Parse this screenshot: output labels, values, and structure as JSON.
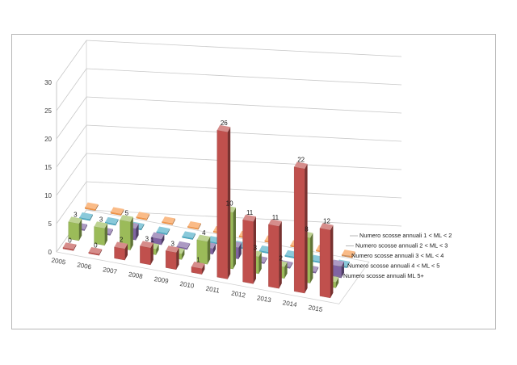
{
  "chart_data": {
    "type": "bar",
    "subtype": "3d-column",
    "categories": [
      "2005",
      "2006",
      "2007",
      "2008",
      "2009",
      "2010",
      "2011",
      "2012",
      "2013",
      "2014",
      "2015"
    ],
    "ylim": [
      0,
      30
    ],
    "yticks": [
      "0",
      "5",
      "10",
      "15",
      "20",
      "25",
      "30"
    ],
    "grid": true,
    "legend_position": "right",
    "series": [
      {
        "name": "Numero scosse annuali 1 < ML < 2",
        "color": "#c0504d",
        "values": [
          0,
          0,
          2,
          3,
          3,
          1,
          26,
          11,
          11,
          22,
          12
        ]
      },
      {
        "name": "Numero scosse annuali 2 < ML < 3",
        "color": "#9bbb59",
        "values": [
          3,
          3,
          5,
          1,
          1,
          4,
          10,
          3,
          2,
          8,
          1
        ]
      },
      {
        "name": "Numero scosse annuali 3 < ML < 4",
        "color": "#8064a2",
        "values": [
          0,
          0,
          2,
          1,
          0,
          1,
          2,
          0,
          0,
          0,
          2
        ]
      },
      {
        "name": "Numero scosse annuali 4 < ML < 5",
        "color": "#4bacc6",
        "values": [
          0,
          0,
          0,
          0,
          0,
          0,
          0,
          0,
          0,
          0,
          0
        ]
      },
      {
        "name": "Numero scosse annuali ML 5+",
        "color": "#f79646",
        "values": [
          0,
          0,
          0,
          0,
          0,
          0,
          0,
          0,
          0,
          0,
          0
        ]
      }
    ],
    "visible_data_labels": [
      {
        "series": 0,
        "index": 0,
        "text": "0"
      },
      {
        "series": 0,
        "index": 1,
        "text": "0"
      },
      {
        "series": 0,
        "index": 2,
        "text": "2"
      },
      {
        "series": 0,
        "index": 3,
        "text": "3"
      },
      {
        "series": 0,
        "index": 4,
        "text": "3"
      },
      {
        "series": 0,
        "index": 5,
        "text": "1"
      },
      {
        "series": 0,
        "index": 6,
        "text": "26"
      },
      {
        "series": 0,
        "index": 7,
        "text": "11"
      },
      {
        "series": 0,
        "index": 8,
        "text": "11"
      },
      {
        "series": 0,
        "index": 9,
        "text": "22"
      },
      {
        "series": 0,
        "index": 10,
        "text": "12"
      },
      {
        "series": 1,
        "index": 0,
        "text": "3"
      },
      {
        "series": 1,
        "index": 1,
        "text": "3"
      },
      {
        "series": 1,
        "index": 2,
        "text": "5"
      },
      {
        "series": 1,
        "index": 3,
        "text": "1"
      },
      {
        "series": 1,
        "index": 5,
        "text": "4"
      },
      {
        "series": 1,
        "index": 6,
        "text": "10"
      },
      {
        "series": 1,
        "index": 7,
        "text": "3"
      },
      {
        "series": 1,
        "index": 8,
        "text": "2"
      },
      {
        "series": 1,
        "index": 9,
        "text": "8"
      }
    ]
  }
}
